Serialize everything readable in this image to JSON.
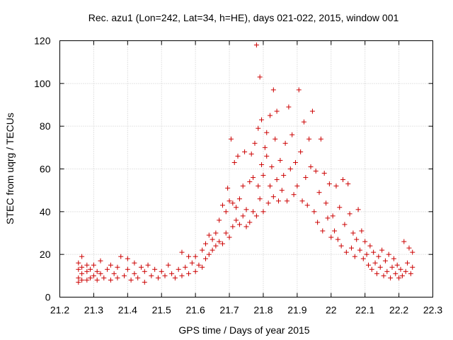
{
  "chart_data": {
    "type": "scatter",
    "title": "Rec. azu1 (Lon=242, Lat=34, h=HE), days 021-022, 2015, window 001",
    "xlabel": "GPS time / Days of year 2015",
    "ylabel": "STEC from uqrg / TECUs",
    "xlim": [
      21.2,
      22.3
    ],
    "ylim": [
      0,
      120
    ],
    "xticks": [
      "21.2",
      "21.3",
      "21.4",
      "21.5",
      "21.6",
      "21.7",
      "21.8",
      "21.9",
      "22",
      "22.1",
      "22.2",
      "22.3"
    ],
    "yticks": [
      "0",
      "20",
      "40",
      "60",
      "80",
      "100",
      "120"
    ],
    "grid": true,
    "marker": "+",
    "color": "#cc0000",
    "series": [
      {
        "name": "STEC",
        "points": [
          [
            21.255,
            7
          ],
          [
            21.255,
            9
          ],
          [
            21.255,
            13
          ],
          [
            21.255,
            16
          ],
          [
            21.265,
            8
          ],
          [
            21.265,
            11
          ],
          [
            21.265,
            14
          ],
          [
            21.265,
            19
          ],
          [
            21.28,
            8
          ],
          [
            21.28,
            12
          ],
          [
            21.28,
            15
          ],
          [
            21.29,
            9
          ],
          [
            21.29,
            13
          ],
          [
            21.3,
            10
          ],
          [
            21.3,
            15
          ],
          [
            21.31,
            8
          ],
          [
            21.31,
            12
          ],
          [
            21.32,
            11
          ],
          [
            21.32,
            17
          ],
          [
            21.33,
            9
          ],
          [
            21.34,
            13
          ],
          [
            21.35,
            8
          ],
          [
            21.35,
            15
          ],
          [
            21.36,
            11
          ],
          [
            21.37,
            9
          ],
          [
            21.37,
            14
          ],
          [
            21.38,
            19
          ],
          [
            21.39,
            10
          ],
          [
            21.4,
            13
          ],
          [
            21.4,
            18
          ],
          [
            21.41,
            8
          ],
          [
            21.42,
            11
          ],
          [
            21.42,
            16
          ],
          [
            21.43,
            9
          ],
          [
            21.44,
            14
          ],
          [
            21.45,
            7
          ],
          [
            21.45,
            12
          ],
          [
            21.46,
            15
          ],
          [
            21.47,
            10
          ],
          [
            21.48,
            13
          ],
          [
            21.49,
            9
          ],
          [
            21.5,
            12
          ],
          [
            21.51,
            10
          ],
          [
            21.52,
            15
          ],
          [
            21.53,
            11
          ],
          [
            21.54,
            9
          ],
          [
            21.55,
            13
          ],
          [
            21.56,
            10
          ],
          [
            21.56,
            21
          ],
          [
            21.57,
            14
          ],
          [
            21.58,
            11
          ],
          [
            21.58,
            19
          ],
          [
            21.59,
            16
          ],
          [
            21.6,
            12
          ],
          [
            21.6,
            19
          ],
          [
            21.61,
            15
          ],
          [
            21.62,
            14
          ],
          [
            21.62,
            22
          ],
          [
            21.63,
            18
          ],
          [
            21.63,
            25
          ],
          [
            21.64,
            20
          ],
          [
            21.64,
            29
          ],
          [
            21.65,
            22
          ],
          [
            21.65,
            27
          ],
          [
            21.66,
            24
          ],
          [
            21.66,
            30
          ],
          [
            21.67,
            26
          ],
          [
            21.67,
            36
          ],
          [
            21.68,
            25
          ],
          [
            21.68,
            43
          ],
          [
            21.69,
            30
          ],
          [
            21.69,
            40
          ],
          [
            21.695,
            51
          ],
          [
            21.7,
            28
          ],
          [
            21.7,
            45
          ],
          [
            21.705,
            74
          ],
          [
            21.71,
            33
          ],
          [
            21.71,
            44
          ],
          [
            21.715,
            63
          ],
          [
            21.72,
            36
          ],
          [
            21.72,
            42
          ],
          [
            21.725,
            66
          ],
          [
            21.73,
            34
          ],
          [
            21.73,
            46
          ],
          [
            21.74,
            38
          ],
          [
            21.74,
            52
          ],
          [
            21.745,
            68
          ],
          [
            21.75,
            33
          ],
          [
            21.75,
            41
          ],
          [
            21.76,
            35
          ],
          [
            21.76,
            54
          ],
          [
            21.765,
            67
          ],
          [
            21.77,
            40
          ],
          [
            21.77,
            56
          ],
          [
            21.775,
            72
          ],
          [
            21.78,
            118
          ],
          [
            21.78,
            38
          ],
          [
            21.785,
            52
          ],
          [
            21.785,
            79
          ],
          [
            21.79,
            103
          ],
          [
            21.79,
            46
          ],
          [
            21.795,
            62
          ],
          [
            21.795,
            83
          ],
          [
            21.8,
            40
          ],
          [
            21.8,
            57
          ],
          [
            21.805,
            70
          ],
          [
            21.81,
            66
          ],
          [
            21.81,
            77
          ],
          [
            21.815,
            44
          ],
          [
            21.82,
            52
          ],
          [
            21.82,
            85
          ],
          [
            21.825,
            61
          ],
          [
            21.83,
            97
          ],
          [
            21.83,
            47
          ],
          [
            21.835,
            74
          ],
          [
            21.84,
            55
          ],
          [
            21.84,
            87
          ],
          [
            21.845,
            45
          ],
          [
            21.85,
            64
          ],
          [
            21.855,
            50
          ],
          [
            21.86,
            57
          ],
          [
            21.865,
            72
          ],
          [
            21.87,
            45
          ],
          [
            21.875,
            89
          ],
          [
            21.88,
            60
          ],
          [
            21.885,
            76
          ],
          [
            21.89,
            48
          ],
          [
            21.895,
            63
          ],
          [
            21.9,
            52
          ],
          [
            21.905,
            97
          ],
          [
            21.91,
            68
          ],
          [
            21.915,
            45
          ],
          [
            21.92,
            82
          ],
          [
            21.925,
            56
          ],
          [
            21.93,
            43
          ],
          [
            21.935,
            74
          ],
          [
            21.94,
            61
          ],
          [
            21.945,
            87
          ],
          [
            21.95,
            40
          ],
          [
            21.955,
            59
          ],
          [
            21.96,
            35
          ],
          [
            21.965,
            49
          ],
          [
            21.97,
            74
          ],
          [
            21.975,
            31
          ],
          [
            21.98,
            58
          ],
          [
            21.985,
            44
          ],
          [
            21.99,
            37
          ],
          [
            21.995,
            53
          ],
          [
            22.0,
            28
          ],
          [
            22.005,
            38
          ],
          [
            22.01,
            31
          ],
          [
            22.015,
            52
          ],
          [
            22.02,
            27
          ],
          [
            22.025,
            42
          ],
          [
            22.03,
            24
          ],
          [
            22.035,
            55
          ],
          [
            22.04,
            34
          ],
          [
            22.045,
            21
          ],
          [
            22.05,
            53
          ],
          [
            22.055,
            39
          ],
          [
            22.06,
            23
          ],
          [
            22.065,
            30
          ],
          [
            22.07,
            19
          ],
          [
            22.075,
            27
          ],
          [
            22.08,
            41
          ],
          [
            22.085,
            22
          ],
          [
            22.09,
            31
          ],
          [
            22.095,
            18
          ],
          [
            22.1,
            26
          ],
          [
            22.105,
            20
          ],
          [
            22.11,
            15
          ],
          [
            22.115,
            24
          ],
          [
            22.12,
            13
          ],
          [
            22.125,
            21
          ],
          [
            22.13,
            16
          ],
          [
            22.135,
            11
          ],
          [
            22.14,
            19
          ],
          [
            22.145,
            14
          ],
          [
            22.15,
            22
          ],
          [
            22.155,
            10
          ],
          [
            22.16,
            17
          ],
          [
            22.165,
            12
          ],
          [
            22.17,
            20
          ],
          [
            22.175,
            9
          ],
          [
            22.18,
            14
          ],
          [
            22.185,
            18
          ],
          [
            22.19,
            11
          ],
          [
            22.195,
            15
          ],
          [
            22.2,
            9
          ],
          [
            22.205,
            13
          ],
          [
            22.21,
            10
          ],
          [
            22.215,
            26
          ],
          [
            22.22,
            12
          ],
          [
            22.225,
            16
          ],
          [
            22.23,
            23
          ],
          [
            22.235,
            11
          ],
          [
            22.24,
            14
          ],
          [
            22.24,
            21
          ]
        ]
      }
    ]
  }
}
